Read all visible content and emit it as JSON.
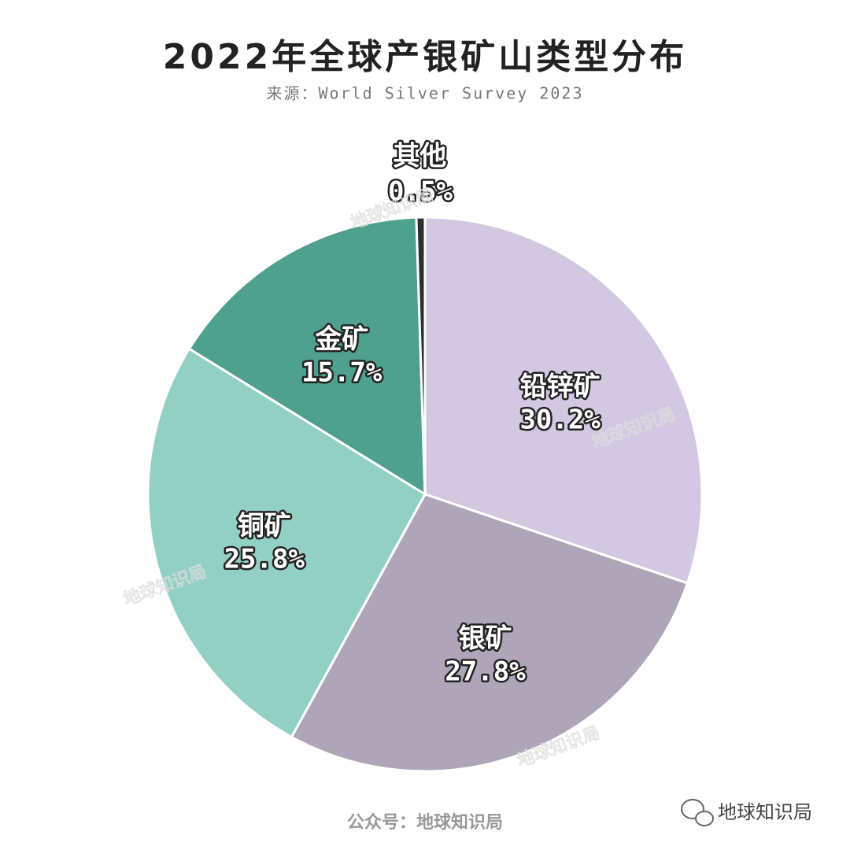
{
  "chart_data": {
    "type": "pie",
    "title": "2022年全球产银矿山类型分布",
    "subtitle": "来源：World Silver Survey 2023",
    "categories": [
      "铅锌矿",
      "银矿",
      "铜矿",
      "金矿",
      "其他"
    ],
    "values": [
      30.2,
      27.8,
      25.8,
      15.7,
      0.5
    ],
    "value_labels": [
      "30.2%",
      "27.8%",
      "25.8%",
      "15.7%",
      "0.5%"
    ],
    "colors": [
      "#d3c8e1",
      "#aea6b8",
      "#93d0c4",
      "#4fa08c",
      "#2e2e2e"
    ],
    "watermark": "地球知识局",
    "footer": "公众号：地球知识局",
    "brand": "地球知识局"
  }
}
